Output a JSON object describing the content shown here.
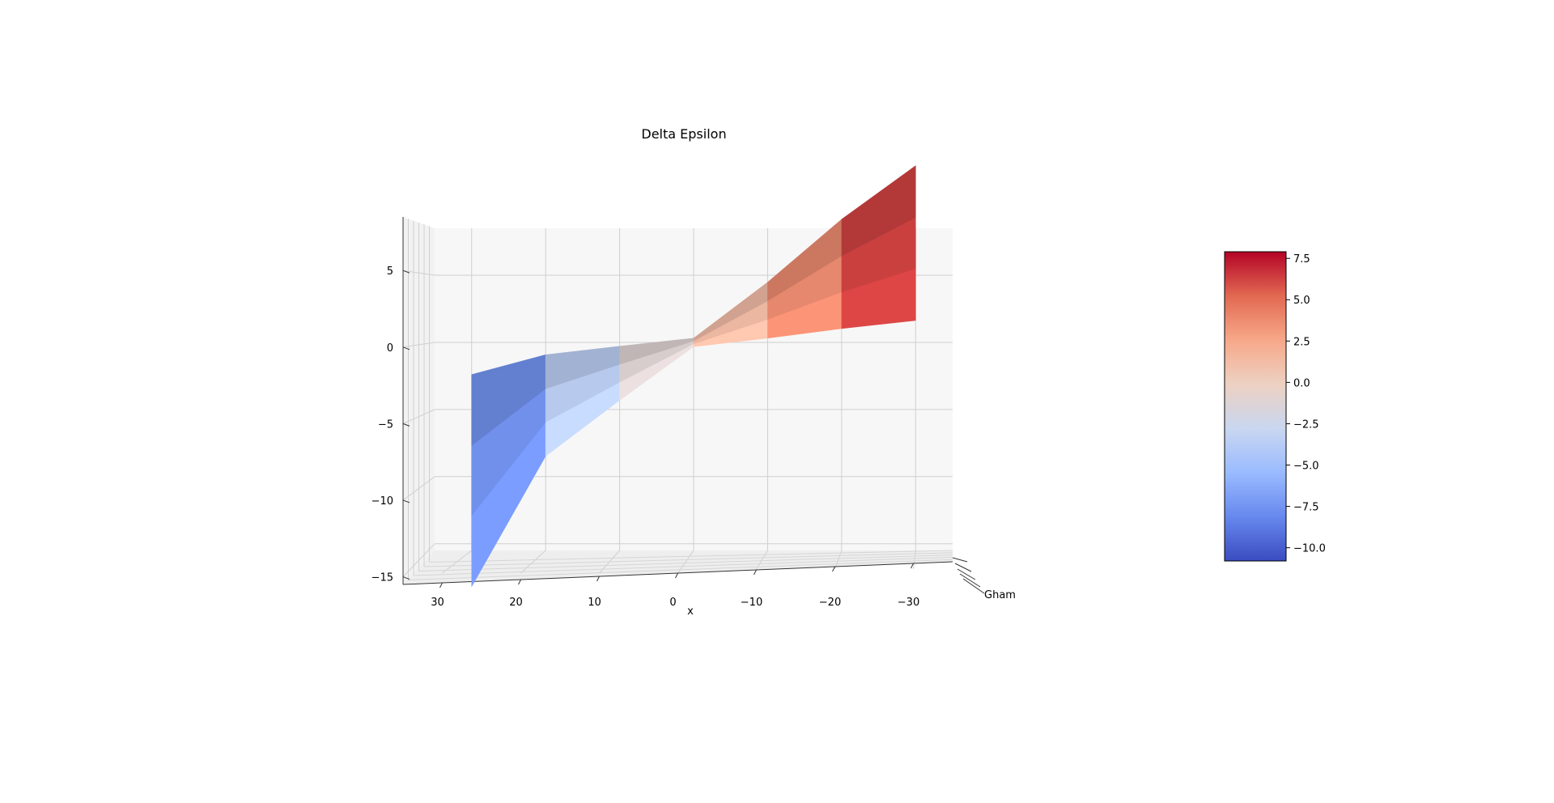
{
  "chart_data": {
    "type": "surface3d",
    "title": "Delta Epsilon",
    "xlabel": "x",
    "ylabel": "Gham",
    "zlabel": "",
    "colormap": "coolwarm",
    "x_ticks": [
      "30",
      "20",
      "10",
      "0",
      "−10",
      "−20",
      "−30"
    ],
    "z_ticks": [
      "5",
      "0",
      "−5",
      "−10",
      "−15"
    ],
    "xlim": [
      35,
      -35
    ],
    "zlim": [
      -15.5,
      8.5
    ],
    "x_samples": [
      30,
      20,
      10,
      0,
      -10,
      -20,
      -30
    ],
    "z_center": [
      -10.3,
      -4.7,
      -2.3,
      0,
      2.4,
      5.1,
      7.4
    ],
    "colorbar": {
      "ticks": [
        "7.5",
        "5.0",
        "2.5",
        "0.0",
        "−2.5",
        "−5.0",
        "−7.5",
        "−10.0"
      ],
      "tick_values": [
        7.5,
        5.0,
        2.5,
        0.0,
        -2.5,
        -5.0,
        -7.5,
        -10.0
      ],
      "range": [
        -10.8,
        7.9
      ],
      "colors": [
        "#3b4cc0",
        "#6788ee",
        "#9abbff",
        "#c9d7f0",
        "#edd1c2",
        "#f7a889",
        "#e26952",
        "#b40426"
      ]
    }
  }
}
